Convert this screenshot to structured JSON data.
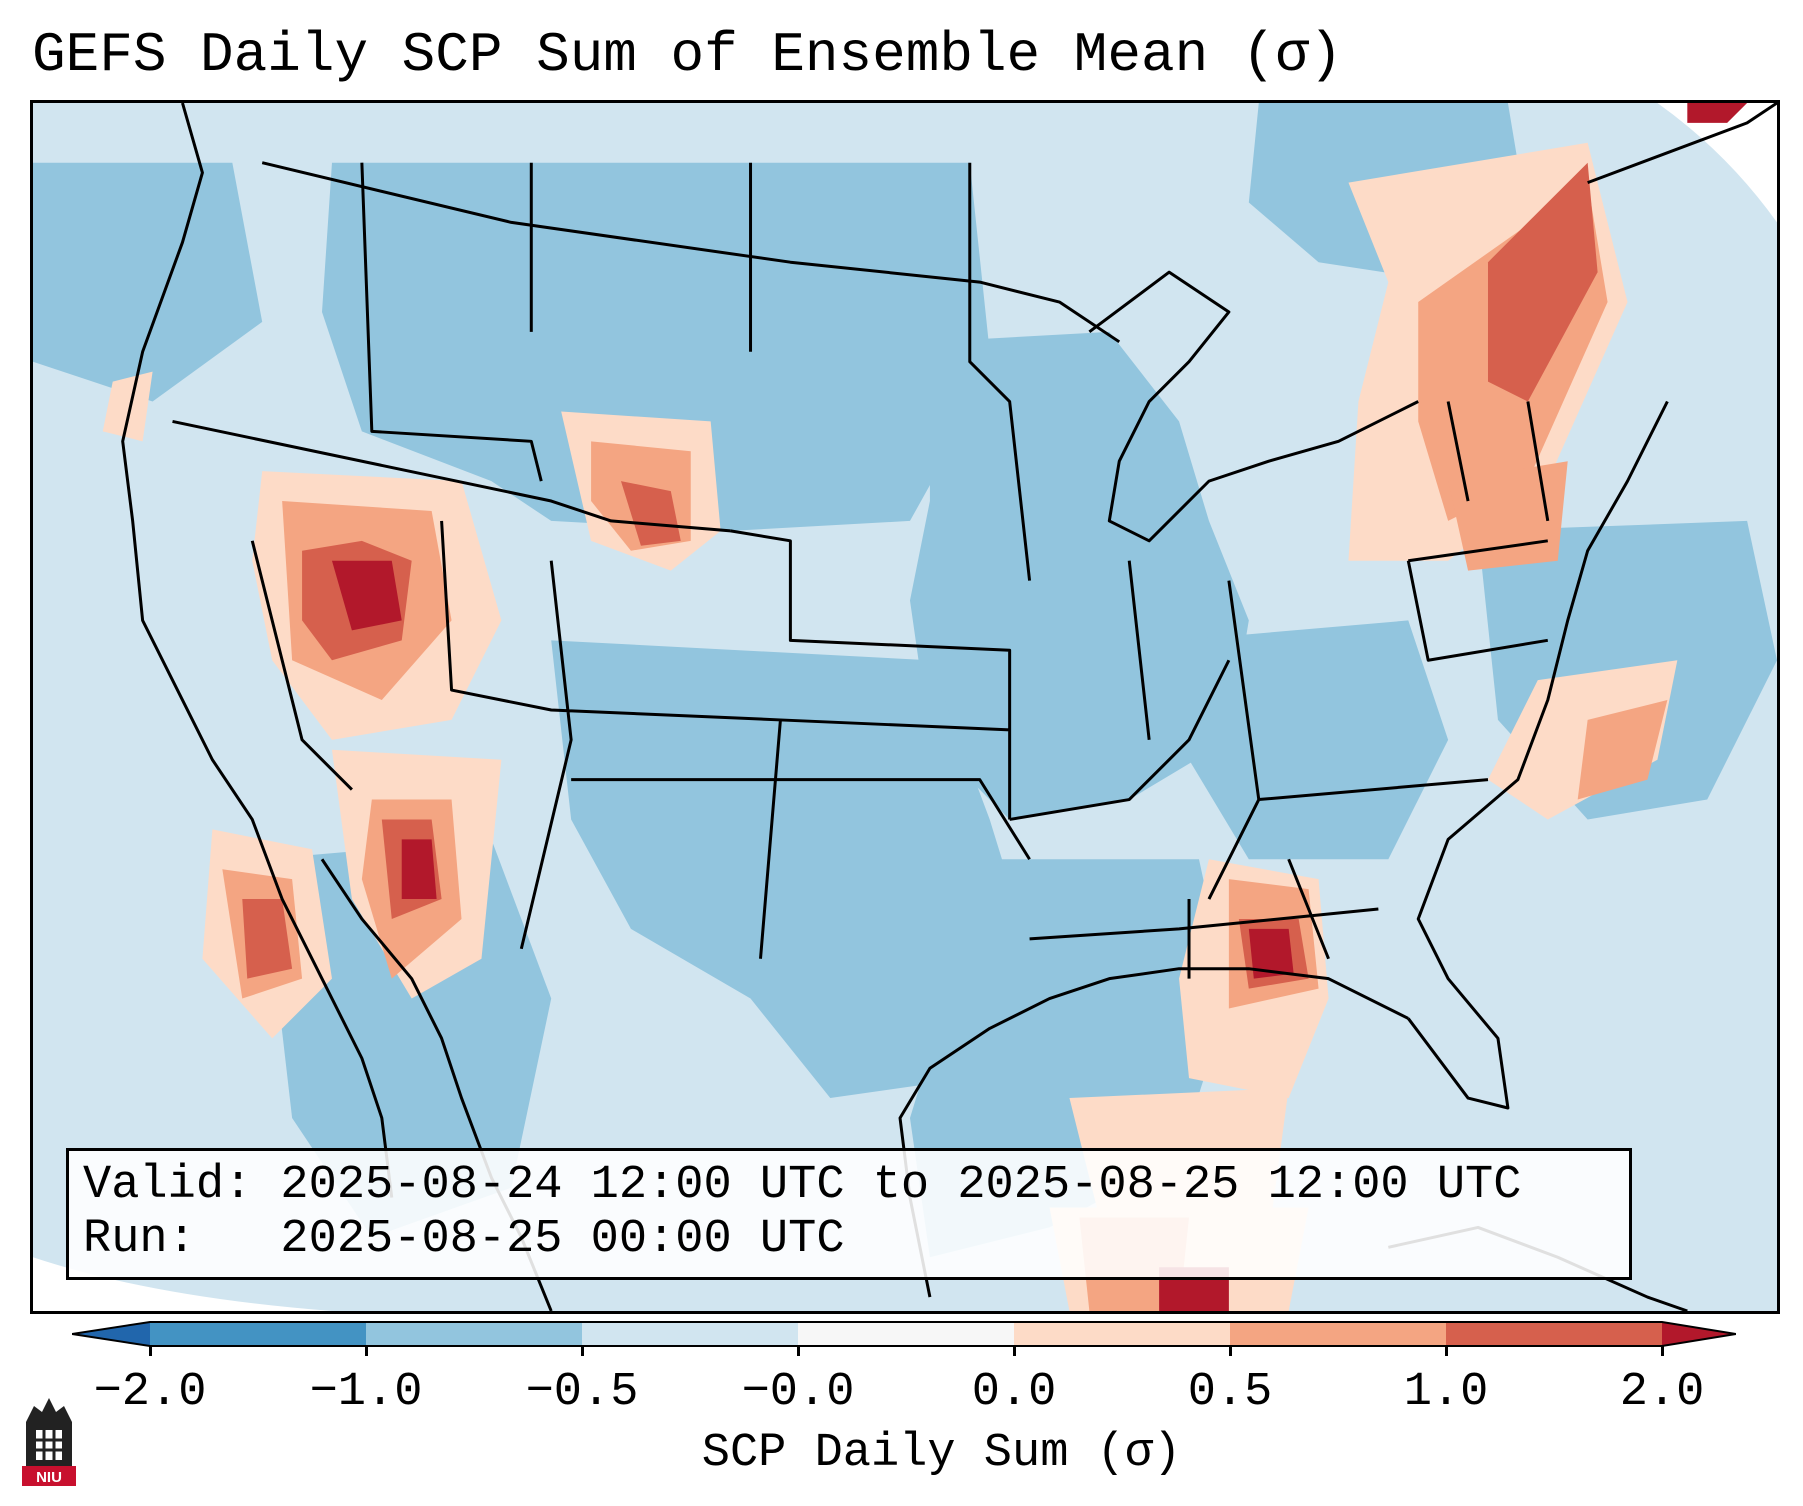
{
  "figure": {
    "title": "GEFS Daily SCP Sum of Ensemble Mean (σ)"
  },
  "info": {
    "valid_line": "Valid: 2025-08-24 12:00 UTC to 2025-08-25 12:00 UTC",
    "run_line": "Run:   2025-08-25 00:00 UTC"
  },
  "colorbar": {
    "label": "SCP Daily Sum (σ)",
    "tick_labels": [
      "−2.0",
      "−1.0",
      "−0.5",
      "−0.0",
      "0.0",
      "0.5",
      "1.0",
      "2.0"
    ],
    "bin_colors": [
      "#4393c3",
      "#92c5de",
      "#d1e5f0",
      "#f7f7f7",
      "#fddbc7",
      "#f4a582",
      "#d6604d"
    ],
    "under_color": "#2166ac",
    "over_color": "#b2182b"
  },
  "logo": {
    "text": "NIU",
    "color": "#c8102e"
  },
  "map": {
    "projection": "Lambert conformal CONUS",
    "base_color": "#d1e5f0",
    "ocean_color": "#d1e5f0",
    "land_color_dry": "#92c5de"
  }
}
